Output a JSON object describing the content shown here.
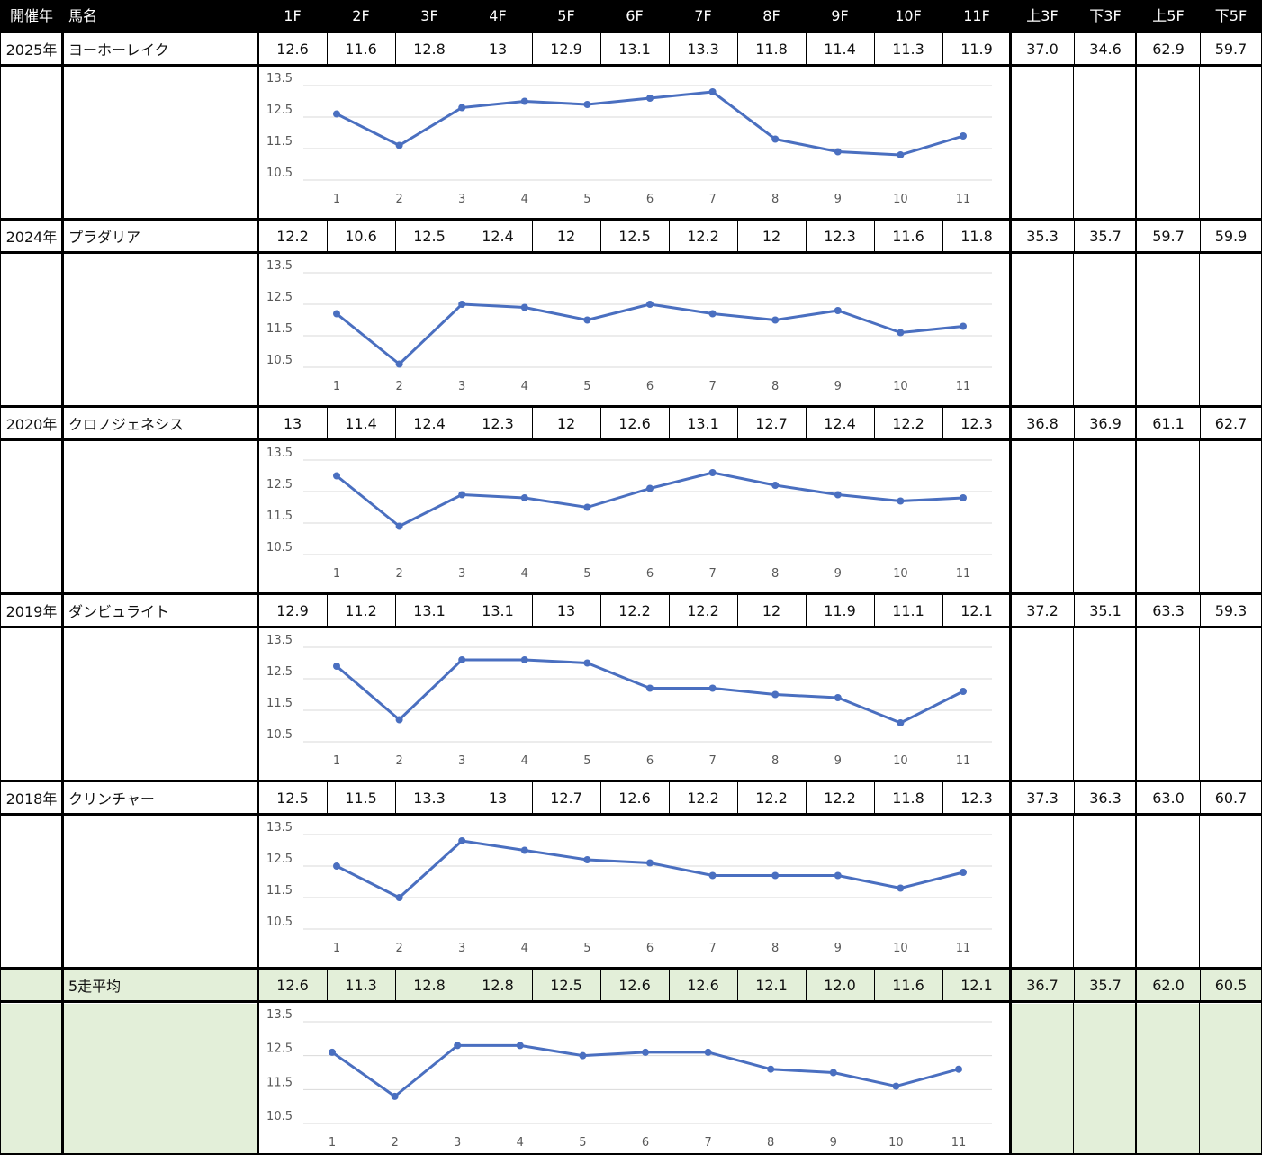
{
  "header": {
    "year_label": "開催年",
    "horse_label": "馬名",
    "furlongs": [
      "1F",
      "2F",
      "3F",
      "4F",
      "5F",
      "6F",
      "7F",
      "8F",
      "9F",
      "10F",
      "11F"
    ],
    "agg_labels": [
      "上3F",
      "下3F",
      "上5F",
      "下5F"
    ]
  },
  "rows": [
    {
      "year": "2025年",
      "horse": "ヨーホーレイク",
      "laps": [
        "12.6",
        "11.6",
        "12.8",
        "13",
        "12.9",
        "13.1",
        "13.3",
        "11.8",
        "11.4",
        "11.3",
        "11.9"
      ],
      "agg": [
        "37.0",
        "34.6",
        "62.9",
        "59.7"
      ]
    },
    {
      "year": "2024年",
      "horse": "プラダリア",
      "laps": [
        "12.2",
        "10.6",
        "12.5",
        "12.4",
        "12",
        "12.5",
        "12.2",
        "12",
        "12.3",
        "11.6",
        "11.8"
      ],
      "agg": [
        "35.3",
        "35.7",
        "59.7",
        "59.9"
      ]
    },
    {
      "year": "2020年",
      "horse": "クロノジェネシス",
      "laps": [
        "13",
        "11.4",
        "12.4",
        "12.3",
        "12",
        "12.6",
        "13.1",
        "12.7",
        "12.4",
        "12.2",
        "12.3"
      ],
      "agg": [
        "36.8",
        "36.9",
        "61.1",
        "62.7"
      ]
    },
    {
      "year": "2019年",
      "horse": "ダンビュライト",
      "laps": [
        "12.9",
        "11.2",
        "13.1",
        "13.1",
        "13",
        "12.2",
        "12.2",
        "12",
        "11.9",
        "11.1",
        "12.1"
      ],
      "agg": [
        "37.2",
        "35.1",
        "63.3",
        "59.3"
      ]
    },
    {
      "year": "2018年",
      "horse": "クリンチャー",
      "laps": [
        "12.5",
        "11.5",
        "13.3",
        "13",
        "12.7",
        "12.6",
        "12.2",
        "12.2",
        "12.2",
        "11.8",
        "12.3"
      ],
      "agg": [
        "37.3",
        "36.3",
        "63.0",
        "60.7"
      ]
    }
  ],
  "average": {
    "label": "5走平均",
    "laps": [
      "12.6",
      "11.3",
      "12.8",
      "12.8",
      "12.5",
      "12.6",
      "12.6",
      "12.1",
      "12.0",
      "11.6",
      "12.1"
    ],
    "agg": [
      "36.7",
      "35.7",
      "62.0",
      "60.5"
    ]
  },
  "chart_data": [
    {
      "type": "line",
      "x": [
        1,
        2,
        3,
        4,
        5,
        6,
        7,
        8,
        9,
        10,
        11
      ],
      "series": [
        {
          "values": [
            12.6,
            11.6,
            12.8,
            13,
            12.9,
            13.1,
            13.3,
            11.8,
            11.4,
            11.3,
            11.9
          ]
        }
      ],
      "ylim": [
        10.5,
        13.5
      ],
      "yticks": [
        10.5,
        11.5,
        12.5,
        13.5
      ],
      "grid": true
    },
    {
      "type": "line",
      "x": [
        1,
        2,
        3,
        4,
        5,
        6,
        7,
        8,
        9,
        10,
        11
      ],
      "series": [
        {
          "values": [
            12.2,
            10.6,
            12.5,
            12.4,
            12,
            12.5,
            12.2,
            12,
            12.3,
            11.6,
            11.8
          ]
        }
      ],
      "ylim": [
        10.5,
        13.5
      ],
      "yticks": [
        10.5,
        11.5,
        12.5,
        13.5
      ],
      "grid": true
    },
    {
      "type": "line",
      "x": [
        1,
        2,
        3,
        4,
        5,
        6,
        7,
        8,
        9,
        10,
        11
      ],
      "series": [
        {
          "values": [
            13,
            11.4,
            12.4,
            12.3,
            12,
            12.6,
            13.1,
            12.7,
            12.4,
            12.2,
            12.3
          ]
        }
      ],
      "ylim": [
        10.5,
        13.5
      ],
      "yticks": [
        10.5,
        11.5,
        12.5,
        13.5
      ],
      "grid": true
    },
    {
      "type": "line",
      "x": [
        1,
        2,
        3,
        4,
        5,
        6,
        7,
        8,
        9,
        10,
        11
      ],
      "series": [
        {
          "values": [
            12.9,
            11.2,
            13.1,
            13.1,
            13,
            12.2,
            12.2,
            12,
            11.9,
            11.1,
            12.1
          ]
        }
      ],
      "ylim": [
        10.5,
        13.5
      ],
      "yticks": [
        10.5,
        11.5,
        12.5,
        13.5
      ],
      "grid": true
    },
    {
      "type": "line",
      "x": [
        1,
        2,
        3,
        4,
        5,
        6,
        7,
        8,
        9,
        10,
        11
      ],
      "series": [
        {
          "values": [
            12.5,
            11.5,
            13.3,
            13,
            12.7,
            12.6,
            12.2,
            12.2,
            12.2,
            11.8,
            12.3
          ]
        }
      ],
      "ylim": [
        10.5,
        13.5
      ],
      "yticks": [
        10.5,
        11.5,
        12.5,
        13.5
      ],
      "grid": true
    },
    {
      "type": "line",
      "x": [
        1,
        2,
        3,
        4,
        5,
        6,
        7,
        8,
        9,
        10,
        11
      ],
      "series": [
        {
          "values": [
            12.6,
            11.3,
            12.8,
            12.8,
            12.5,
            12.6,
            12.6,
            12.1,
            12.0,
            11.6,
            12.1
          ]
        }
      ],
      "ylim": [
        10.5,
        13.5
      ],
      "yticks": [
        10.5,
        11.5,
        12.5,
        13.5
      ],
      "grid": true
    }
  ],
  "colors": {
    "line": "#4a6fc0",
    "header_bg": "#000000",
    "avg_bg": "#e3efd9",
    "grid": "#d9d9d9"
  }
}
